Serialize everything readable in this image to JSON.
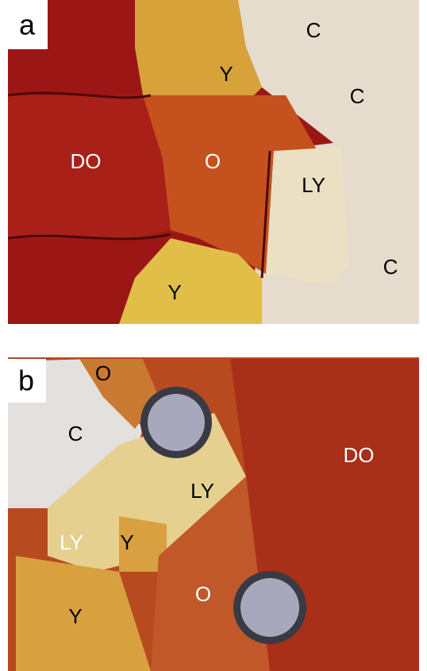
{
  "panels": [
    {
      "label": "a",
      "annotations": [
        "C",
        "Y",
        "C",
        "DO",
        "O",
        "LY",
        "C",
        "Y"
      ]
    },
    {
      "label": "b",
      "annotations": [
        "O",
        "C",
        "DO",
        "LY",
        "LY",
        "Y",
        "O",
        "Y"
      ]
    }
  ]
}
